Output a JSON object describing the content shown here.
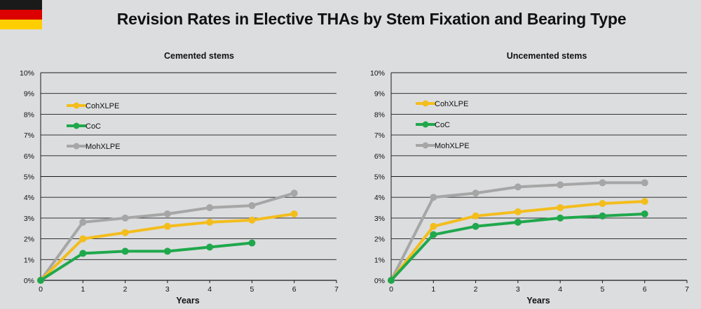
{
  "title": "Revision Rates in Elective THAs by Stem Fixation and Bearing Type",
  "flag_colors": [
    "#1a1a1a",
    "#dd0000",
    "#ffce00"
  ],
  "colors": {
    "CohXLPE": "#f3bd1c",
    "CoC": "#1fa84c",
    "MohXLPE": "#a6a6a6"
  },
  "chart_data": [
    {
      "type": "line",
      "title": "Cemented stems",
      "xlabel": "Years",
      "ylabel": "",
      "xlim": [
        0,
        7
      ],
      "ylim": [
        0,
        10
      ],
      "x_ticks": [
        "0",
        "1",
        "2",
        "3",
        "4",
        "5",
        "6",
        "7"
      ],
      "y_ticks": [
        "0%",
        "1%",
        "2%",
        "3%",
        "4%",
        "5%",
        "6%",
        "7%",
        "8%",
        "9%",
        "10%"
      ],
      "legend": [
        "CohXLPE",
        "CoC",
        "MohXLPE"
      ],
      "series": [
        {
          "name": "MohXLPE",
          "x": [
            0,
            1,
            2,
            3,
            4,
            5,
            6
          ],
          "values": [
            0,
            2.8,
            3.0,
            3.2,
            3.5,
            3.6,
            4.2
          ]
        },
        {
          "name": "CohXLPE",
          "x": [
            0,
            1,
            2,
            3,
            4,
            5,
            6
          ],
          "values": [
            0,
            2.0,
            2.3,
            2.6,
            2.8,
            2.9,
            3.2
          ]
        },
        {
          "name": "CoC",
          "x": [
            0,
            1,
            2,
            3,
            4,
            5
          ],
          "values": [
            0,
            1.3,
            1.4,
            1.4,
            1.6,
            1.8
          ]
        }
      ]
    },
    {
      "type": "line",
      "title": "Uncemented stems",
      "xlabel": "Years",
      "ylabel": "",
      "xlim": [
        0,
        7
      ],
      "ylim": [
        0,
        10
      ],
      "x_ticks": [
        "0",
        "1",
        "2",
        "3",
        "4",
        "5",
        "6",
        "7"
      ],
      "y_ticks": [
        "0%",
        "1%",
        "2%",
        "3%",
        "4%",
        "5%",
        "6%",
        "7%",
        "8%",
        "9%",
        "10%"
      ],
      "legend": [
        "CohXLPE",
        "CoC",
        "MohXLPE"
      ],
      "series": [
        {
          "name": "MohXLPE",
          "x": [
            0,
            1,
            2,
            3,
            4,
            5,
            6
          ],
          "values": [
            0,
            4.0,
            4.2,
            4.5,
            4.6,
            4.7,
            4.7
          ]
        },
        {
          "name": "CohXLPE",
          "x": [
            0,
            1,
            2,
            3,
            4,
            5,
            6
          ],
          "values": [
            0,
            2.6,
            3.1,
            3.3,
            3.5,
            3.7,
            3.8
          ]
        },
        {
          "name": "CoC",
          "x": [
            0,
            1,
            2,
            3,
            4,
            5,
            6
          ],
          "values": [
            0,
            2.2,
            2.6,
            2.8,
            3.0,
            3.1,
            3.2
          ]
        }
      ]
    }
  ]
}
